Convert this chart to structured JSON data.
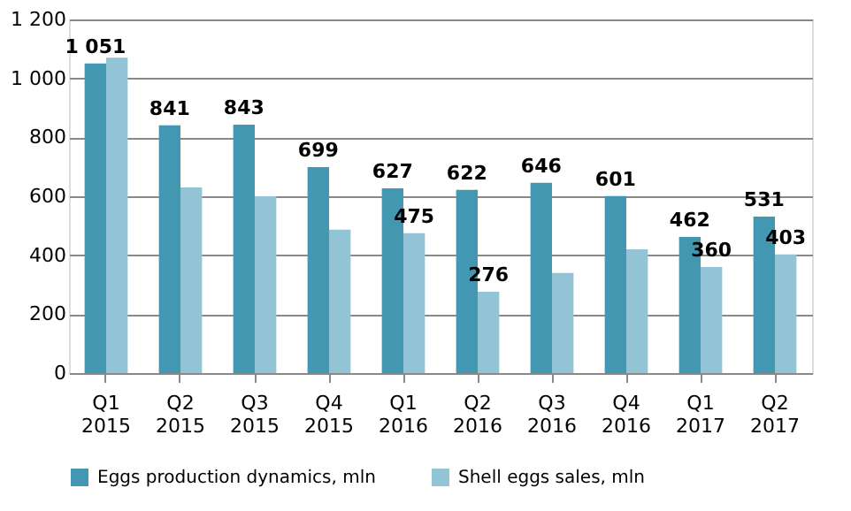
{
  "chart_data": {
    "type": "bar",
    "categories": [
      "Q1 2015",
      "Q2 2015",
      "Q3 2015",
      "Q4 2015",
      "Q1 2016",
      "Q2 2016",
      "Q3 2016",
      "Q4 2016",
      "Q1 2017",
      "Q2 2017"
    ],
    "series": [
      {
        "name": "Eggs production dynamics, mln",
        "color": "#4397b0",
        "values": [
          1051,
          841,
          843,
          699,
          627,
          622,
          646,
          601,
          462,
          531
        ],
        "value_labels": [
          "1 051",
          "841",
          "843",
          "699",
          "627",
          "622",
          "646",
          "601",
          "462",
          "531"
        ]
      },
      {
        "name": "Shell eggs sales, mln",
        "color": "#93c4d6",
        "values": [
          1070,
          630,
          600,
          487,
          475,
          276,
          340,
          420,
          360,
          403
        ],
        "value_labels": [
          null,
          null,
          null,
          null,
          "475",
          "276",
          null,
          null,
          "360",
          "403"
        ]
      }
    ],
    "ylim": [
      0,
      1200
    ],
    "yticks": [
      0,
      200,
      400,
      600,
      800,
      {
        "value": 1000,
        "label": "1 000"
      },
      {
        "value": 1200,
        "label": "1 200"
      }
    ],
    "grid": "y",
    "legend": "bottom"
  }
}
